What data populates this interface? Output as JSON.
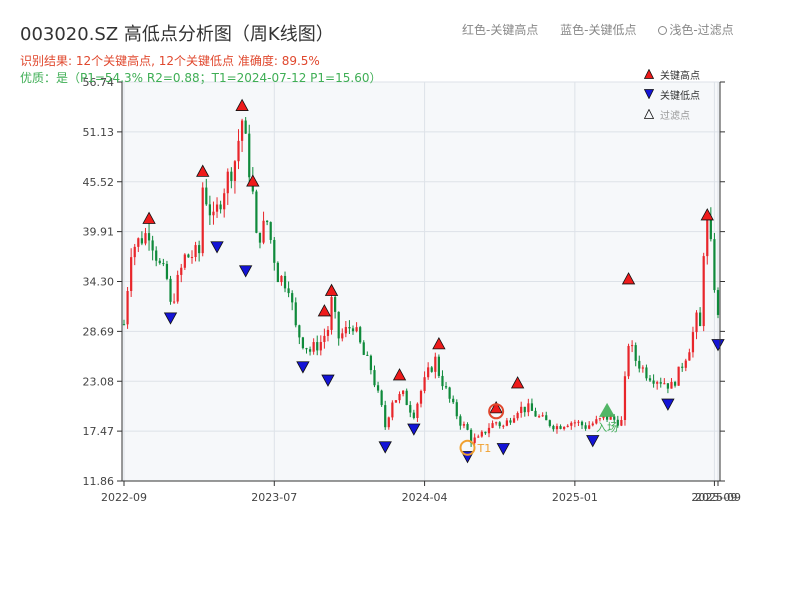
{
  "header": {
    "title": "003020.SZ 高低点分析图（周K线图）",
    "result_line": "识别结果: 12个关键高点, 12个关键低点  准确度: 89.5%",
    "quality_line": "优质：是（P1=54.3%  R2=0.88；T1=2024-07-12 P1=15.60）",
    "top_legend": {
      "red": "红色-关键高点",
      "blue": "蓝色-关键低点",
      "light": "浅色-过滤点"
    }
  },
  "colors": {
    "up": "#e8262b",
    "down": "#0f8a3b",
    "high_marker": "#ee1b1b",
    "low_marker": "#1414d6",
    "plot_bg": "#f6f8fa",
    "grid": "#dde2e8",
    "circle_orange": "#f0a030",
    "circle_red": "#e0482e",
    "entry_green": "#3fae55"
  },
  "chart_data": {
    "type": "candlestick",
    "ylim": [
      11.86,
      56.74
    ],
    "yticks": [
      "56.74",
      "51.13",
      "45.52",
      "39.91",
      "34.30",
      "28.69",
      "23.08",
      "17.47",
      "11.86"
    ],
    "xticks": [
      {
        "label": "2022-09",
        "index": 0
      },
      {
        "label": "2023-07",
        "index": 42
      },
      {
        "label": "2024-04",
        "index": 84
      },
      {
        "label": "2025-01",
        "index": 126
      },
      {
        "label": "2025-09",
        "index": 165
      },
      {
        "label": "2025-09",
        "index": 166
      }
    ],
    "bar_count": 167,
    "price_path": [
      [
        0,
        29.5
      ],
      [
        2,
        38
      ],
      [
        7,
        40
      ],
      [
        10,
        36
      ],
      [
        12,
        34.5
      ],
      [
        13,
        31.5
      ],
      [
        17,
        37
      ],
      [
        21,
        37.5
      ],
      [
        22,
        45
      ],
      [
        25,
        41
      ],
      [
        28,
        45
      ],
      [
        31,
        48
      ],
      [
        33,
        52.5
      ],
      [
        35,
        47
      ],
      [
        36,
        44
      ],
      [
        37,
        39
      ],
      [
        40,
        41
      ],
      [
        43,
        35
      ],
      [
        46,
        34
      ],
      [
        48,
        29
      ],
      [
        50,
        27.5
      ],
      [
        52,
        26.5
      ],
      [
        55,
        27.5
      ],
      [
        57,
        29
      ],
      [
        58,
        32
      ],
      [
        60,
        28
      ],
      [
        64,
        29.5
      ],
      [
        67,
        26
      ],
      [
        69,
        24.5
      ],
      [
        72,
        20
      ],
      [
        73,
        18
      ],
      [
        75,
        21
      ],
      [
        78,
        21.5
      ],
      [
        80,
        20
      ],
      [
        81,
        19.5
      ],
      [
        83,
        22
      ],
      [
        85,
        24
      ],
      [
        87,
        25.5
      ],
      [
        88,
        24
      ],
      [
        91,
        21
      ],
      [
        94,
        18.5
      ],
      [
        96,
        17.5
      ],
      [
        97,
        16.5
      ],
      [
        99,
        16.5
      ],
      [
        102,
        18
      ],
      [
        104,
        18.5
      ],
      [
        106,
        18
      ],
      [
        108,
        19
      ],
      [
        110,
        20
      ],
      [
        113,
        20
      ],
      [
        116,
        19
      ],
      [
        118,
        18.5
      ],
      [
        121,
        18
      ],
      [
        124,
        18.5
      ],
      [
        126,
        18.5
      ],
      [
        129,
        18
      ],
      [
        132,
        18.5
      ],
      [
        135,
        19
      ],
      [
        139,
        18.5
      ],
      [
        141,
        27.5
      ],
      [
        143,
        25.5
      ],
      [
        146,
        24
      ],
      [
        148,
        23.5
      ],
      [
        151,
        23
      ],
      [
        153,
        22.5
      ],
      [
        155,
        24
      ],
      [
        158,
        27
      ],
      [
        160,
        30
      ],
      [
        161,
        29
      ],
      [
        162,
        38
      ],
      [
        163,
        41
      ],
      [
        164,
        38
      ],
      [
        165,
        34
      ],
      [
        166,
        30
      ]
    ],
    "key_highs": [
      {
        "index": 7,
        "price": 40.6
      },
      {
        "index": 22,
        "price": 45.9
      },
      {
        "index": 33,
        "price": 53.3
      },
      {
        "index": 36,
        "price": 44.8
      },
      {
        "index": 56,
        "price": 30.2
      },
      {
        "index": 58,
        "price": 32.5
      },
      {
        "index": 77,
        "price": 23.0
      },
      {
        "index": 88,
        "price": 26.5
      },
      {
        "index": 104,
        "price": 19.3
      },
      {
        "index": 110,
        "price": 22.1
      },
      {
        "index": 141,
        "price": 33.8
      },
      {
        "index": 163,
        "price": 41.0
      }
    ],
    "key_lows": [
      {
        "index": 13,
        "price": 31.0
      },
      {
        "index": 26,
        "price": 39.0
      },
      {
        "index": 34,
        "price": 36.3
      },
      {
        "index": 50,
        "price": 25.5
      },
      {
        "index": 57,
        "price": 24.0
      },
      {
        "index": 73,
        "price": 16.5
      },
      {
        "index": 81,
        "price": 18.5
      },
      {
        "index": 96,
        "price": 15.4
      },
      {
        "index": 106,
        "price": 16.3
      },
      {
        "index": 131,
        "price": 17.2
      },
      {
        "index": 152,
        "price": 21.3
      },
      {
        "index": 166,
        "price": 28.0
      }
    ],
    "filtered_points": [],
    "annotations": {
      "t1_label": "T1",
      "t1_index": 96,
      "t1_price": 15.6,
      "p1_index": 104,
      "p1_price": 19.7,
      "entry_label": "入场",
      "entry_index": 135,
      "entry_price": 19.3
    },
    "legend_entries": [
      "关键高点",
      "关键低点",
      "过滤点"
    ]
  }
}
